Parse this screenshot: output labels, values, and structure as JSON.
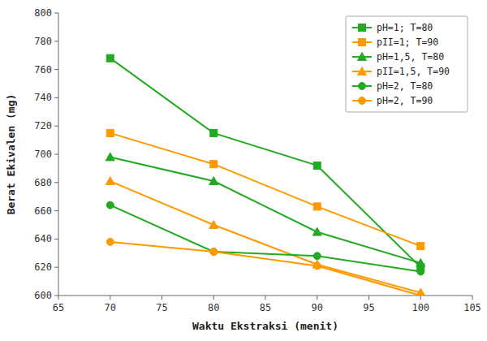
{
  "chart_data": {
    "type": "line",
    "x_label": "Waktu Ekstraksi (menit)",
    "y_label": "Berat Ekivalen (mg)",
    "x": [
      70,
      80,
      90,
      100
    ],
    "series": [
      {
        "name": "pH=1; T=80",
        "color": "#22aa22",
        "marker": "square",
        "values": [
          768,
          715,
          692,
          620
        ]
      },
      {
        "name": "pII=1; T=90",
        "color": "#ff9900",
        "marker": "square",
        "values": [
          715,
          693,
          663,
          635
        ]
      },
      {
        "name": "pH=1,5, T=80",
        "color": "#22aa22",
        "marker": "triangle",
        "values": [
          698,
          681,
          645,
          623
        ]
      },
      {
        "name": "pII=1,5, T=90",
        "color": "#ff9900",
        "marker": "triangle",
        "values": [
          681,
          650,
          622,
          602
        ]
      },
      {
        "name": "pH=2, T=80",
        "color": "#22aa22",
        "marker": "circle",
        "values": [
          664,
          631,
          628,
          617
        ]
      },
      {
        "name": "pH=2, T=90",
        "color": "#ff9900",
        "marker": "circle",
        "values": [
          638,
          631,
          621,
          600
        ]
      }
    ],
    "xlim": [
      65,
      105
    ],
    "ylim": [
      600,
      800
    ],
    "xticks": [
      65,
      70,
      75,
      80,
      85,
      90,
      95,
      100,
      105
    ],
    "yticks": [
      600,
      620,
      640,
      660,
      680,
      700,
      720,
      740,
      760,
      780,
      800
    ],
    "grid": false,
    "legend": "upper right"
  }
}
